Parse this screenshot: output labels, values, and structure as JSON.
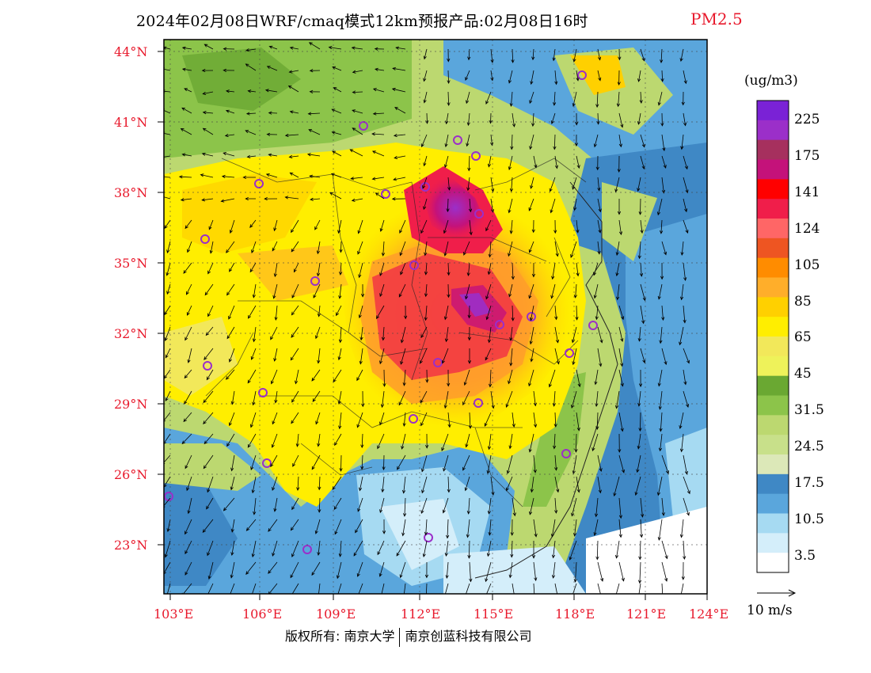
{
  "title": {
    "text": "2024年02月08日WRF/cmaq模式12km预报产品:02月08日16时",
    "species": "PM2.5"
  },
  "lat_labels": [
    "44°N",
    "41°N",
    "38°N",
    "35°N",
    "32°N",
    "29°N",
    "26°N",
    "23°N"
  ],
  "lon_labels": [
    "103°E",
    "106°E",
    "109°E",
    "112°E",
    "115°E",
    "118°E",
    "121°E",
    "124°E"
  ],
  "colorbar": {
    "unit": "(ug/m3)",
    "labels": [
      "225",
      "175",
      "141",
      "124",
      "105",
      "85",
      "65",
      "45",
      "31.5",
      "24.5",
      "17.5",
      "10.5",
      "3.5"
    ],
    "colors": [
      "#7a22d6",
      "#9b2fc9",
      "#a6305e",
      "#c4127a",
      "#ff0000",
      "#f01e4a",
      "#ff6666",
      "#ee5522",
      "#ff8c00",
      "#ffae2a",
      "#ffd000",
      "#ffee00",
      "#f2e85a",
      "#eef25a",
      "#6aa832",
      "#8cc44a",
      "#bcd870",
      "#c8e08a",
      "#dce8b8",
      "#3f88c5",
      "#5aa6dc",
      "#a6daf2",
      "#d4eefa",
      "#ffffff"
    ]
  },
  "wind_reference": {
    "label": "10 m/s"
  },
  "copyright": {
    "part1": "版权所有: 南京大学",
    "part2": "南京创蓝科技有限公司"
  }
}
